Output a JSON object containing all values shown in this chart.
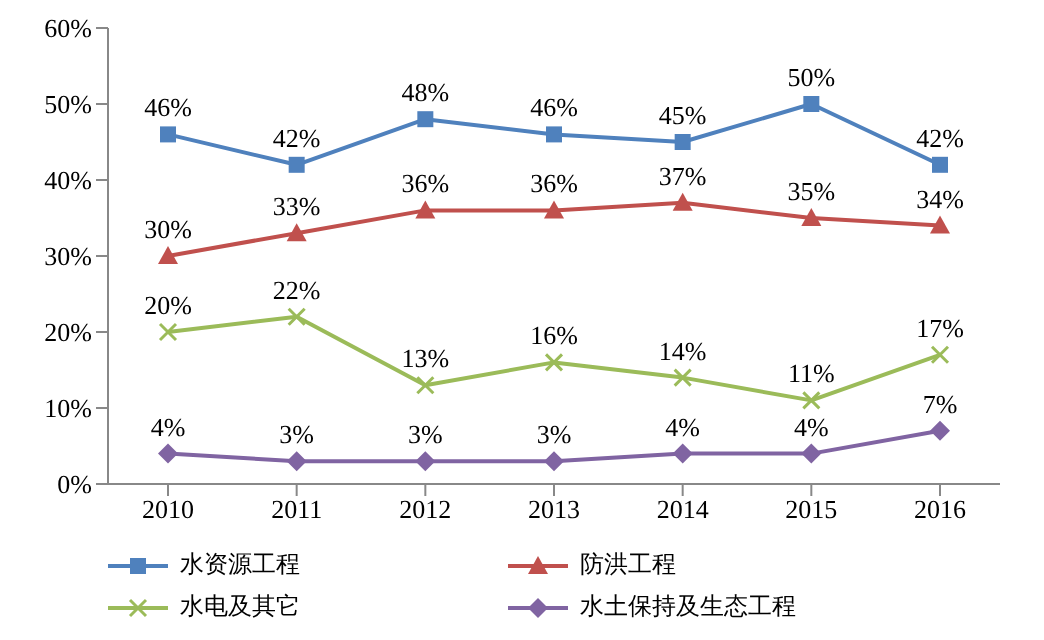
{
  "chart_data": {
    "type": "line",
    "categories": [
      "2010",
      "2011",
      "2012",
      "2013",
      "2014",
      "2015",
      "2016"
    ],
    "ylim": [
      0,
      60
    ],
    "yticks": [
      {
        "value": 0,
        "label": "0%"
      },
      {
        "value": 10,
        "label": "10%"
      },
      {
        "value": 20,
        "label": "20%"
      },
      {
        "value": 30,
        "label": "30%"
      },
      {
        "value": 40,
        "label": "40%"
      },
      {
        "value": 50,
        "label": "50%"
      },
      {
        "value": 60,
        "label": "60%"
      }
    ],
    "grid": false,
    "legend": "bottom",
    "series": [
      {
        "name": "水资源工程",
        "color": "#4f81bd",
        "marker": "square",
        "values": [
          46,
          42,
          48,
          46,
          45,
          50,
          42
        ],
        "value_labels": [
          "46%",
          "42%",
          "48%",
          "46%",
          "45%",
          "50%",
          "42%"
        ]
      },
      {
        "name": "防洪工程",
        "color": "#c0504d",
        "marker": "triangle",
        "values": [
          30,
          33,
          36,
          36,
          37,
          35,
          34
        ],
        "value_labels": [
          "30%",
          "33%",
          "36%",
          "36%",
          "37%",
          "35%",
          "34%"
        ]
      },
      {
        "name": "水电及其它",
        "color": "#9bbb59",
        "marker": "cross",
        "values": [
          20,
          22,
          13,
          16,
          14,
          11,
          17
        ],
        "value_labels": [
          "20%",
          "22%",
          "13%",
          "16%",
          "14%",
          "11%",
          "17%"
        ]
      },
      {
        "name": "水土保持及生态工程",
        "color": "#8064a2",
        "marker": "diamond",
        "values": [
          4,
          3,
          3,
          3,
          4,
          4,
          7
        ],
        "value_labels": [
          "4%",
          "3%",
          "3%",
          "3%",
          "4%",
          "4%",
          "7%"
        ]
      }
    ]
  }
}
